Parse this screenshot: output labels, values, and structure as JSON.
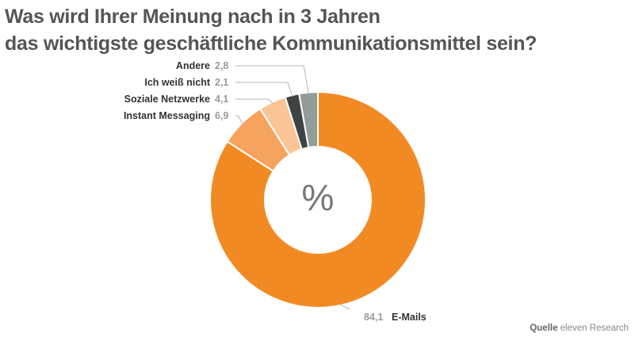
{
  "title": {
    "line1": "Was wird Ihrer Meinung nach in 3 Jahren",
    "line2": "das wichtigste geschäftliche Kommunikationsmittel sein?"
  },
  "chart_data": {
    "type": "pie",
    "donut": true,
    "center_label": "%",
    "slices": [
      {
        "label": "E-Mails",
        "value": 84.1,
        "value_label": "84,1",
        "color": "#f28a24"
      },
      {
        "label": "Instant Messaging",
        "value": 6.9,
        "value_label": "6,9",
        "color": "#f6a35e"
      },
      {
        "label": "Soziale Netzwerke",
        "value": 4.1,
        "value_label": "4,1",
        "color": "#fbc497"
      },
      {
        "label": "Ich weiß nicht",
        "value": 2.1,
        "value_label": "2,1",
        "color": "#3e4443"
      },
      {
        "label": "Andere",
        "value": 2.8,
        "value_label": "2,8",
        "color": "#939c96"
      }
    ]
  },
  "source": {
    "label": "Quelle",
    "value": "eleven Research"
  }
}
